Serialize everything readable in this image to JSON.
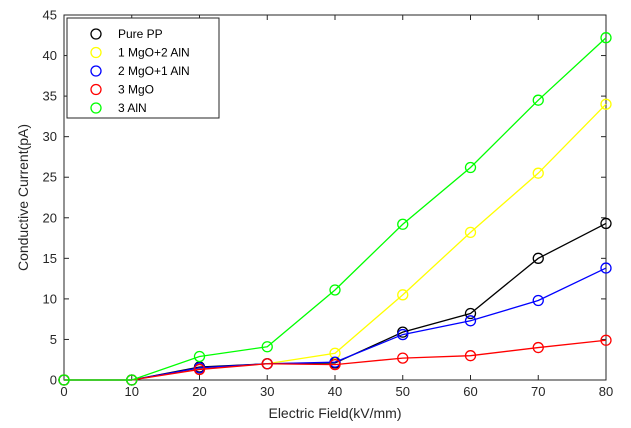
{
  "chart_data": {
    "type": "line",
    "title": "",
    "xlabel": "Electric Field(kV/mm)",
    "ylabel": "Conductive Current(pA)",
    "xlim": [
      0,
      80
    ],
    "ylim": [
      0,
      45
    ],
    "x_ticks": [
      "0",
      "10",
      "20",
      "30",
      "40",
      "50",
      "60",
      "70",
      "80"
    ],
    "y_ticks": [
      "0",
      "5",
      "10",
      "15",
      "20",
      "25",
      "30",
      "35",
      "40",
      "45"
    ],
    "grid": false,
    "legend_position": "top-left",
    "x": [
      0,
      10,
      20,
      30,
      40,
      50,
      60,
      70,
      80
    ],
    "series": [
      {
        "name": "Pure PP",
        "color": "#000000",
        "values": [
          0,
          0,
          1.6,
          2.0,
          2.1,
          5.9,
          8.2,
          15.0,
          19.3
        ]
      },
      {
        "name": "1 MgO+2 AlN",
        "color": "#ffff00",
        "values": [
          0,
          0,
          1.4,
          2.0,
          3.3,
          10.5,
          18.2,
          25.5,
          34.0
        ]
      },
      {
        "name": "2 MgO+1 AlN",
        "color": "#0000ff",
        "values": [
          0,
          0,
          1.5,
          2.0,
          2.2,
          5.6,
          7.3,
          9.8,
          13.8
        ]
      },
      {
        "name": "3 MgO",
        "color": "#ff0000",
        "values": [
          0,
          0,
          1.3,
          2.0,
          1.9,
          2.7,
          3.0,
          4.0,
          4.9
        ]
      },
      {
        "name": "3 AlN",
        "color": "#00ff00",
        "values": [
          0,
          0,
          2.9,
          4.1,
          11.1,
          19.2,
          26.2,
          34.5,
          42.2
        ]
      }
    ]
  }
}
